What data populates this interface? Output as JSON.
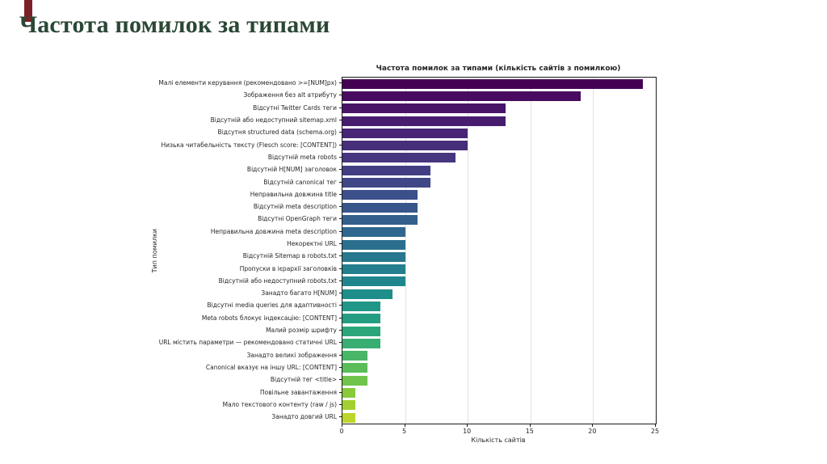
{
  "page": {
    "title": "Частота помилок за типами",
    "title_color": "#2b4736",
    "accent_color": "#7d2128"
  },
  "chart_data": {
    "type": "bar",
    "orientation": "horizontal",
    "title": "Частота помилок за типами (кількість сайтів з помилкою)",
    "xlabel": "Кількість сайтів",
    "ylabel": "Тип помилки",
    "xlim": [
      0,
      25
    ],
    "xticks": [
      0,
      5,
      10,
      15,
      20,
      25
    ],
    "grid": true,
    "legend": "none",
    "colormap": "viridis",
    "categories": [
      "Малі елементи керування (рекомендовано >=[NUM]px)",
      "Зображення без alt атрибуту",
      "Відсутні Twitter Cards теги",
      "Відсутній або недоступний sitemap.xml",
      "Відсутня structured data (schema.org)",
      "Низька читабельність тексту (Flesch score: [CONTENT])",
      "Відсутній meta robots",
      "Відсутній H[NUM] заголовок",
      "Відсутній canonical тег",
      "Неправильна довжина title",
      "Відсутній meta description",
      "Відсутні OpenGraph теги",
      "Неправильна довжина meta description",
      "Некоректні URL",
      "Відсутній Sitemap в robots.txt",
      "Пропуски в ієрархії заголовків",
      "Відсутній або недоступний robots.txt",
      "Занадто багато H[NUM]",
      "Відсутні media queries для адаптивності",
      "Meta robots блокує індексацію: [CONTENT]",
      "Малий розмір шрифту",
      "URL містить параметри — рекомендовано статичні URL",
      "Занадто великі зображення",
      "Canonical вказує на іншу URL: [CONTENT]",
      "Відсутній тег <title>",
      "Повільне завантаження",
      "Мало текстового контенту (raw / js)",
      "Занадто довгий URL"
    ],
    "values": [
      24,
      19,
      13,
      13,
      10,
      10,
      9,
      7,
      7,
      6,
      6,
      6,
      5,
      5,
      5,
      5,
      5,
      4,
      3,
      3,
      3,
      3,
      2,
      2,
      2,
      1,
      1,
      1
    ],
    "colors": [
      "#440154",
      "#470b5f",
      "#481467",
      "#481d6f",
      "#482576",
      "#472e7b",
      "#45367f",
      "#423e83",
      "#3f4787",
      "#3b4f8a",
      "#37578c",
      "#335f8d",
      "#2f678e",
      "#2b6f8e",
      "#27778e",
      "#237f8e",
      "#20868d",
      "#1e8e8b",
      "#1f9688",
      "#239e82",
      "#2ba67b",
      "#38ae72",
      "#48b567",
      "#5bbd5a",
      "#70c44b",
      "#88ca3c",
      "#a2d030",
      "#bdd52b"
    ]
  }
}
